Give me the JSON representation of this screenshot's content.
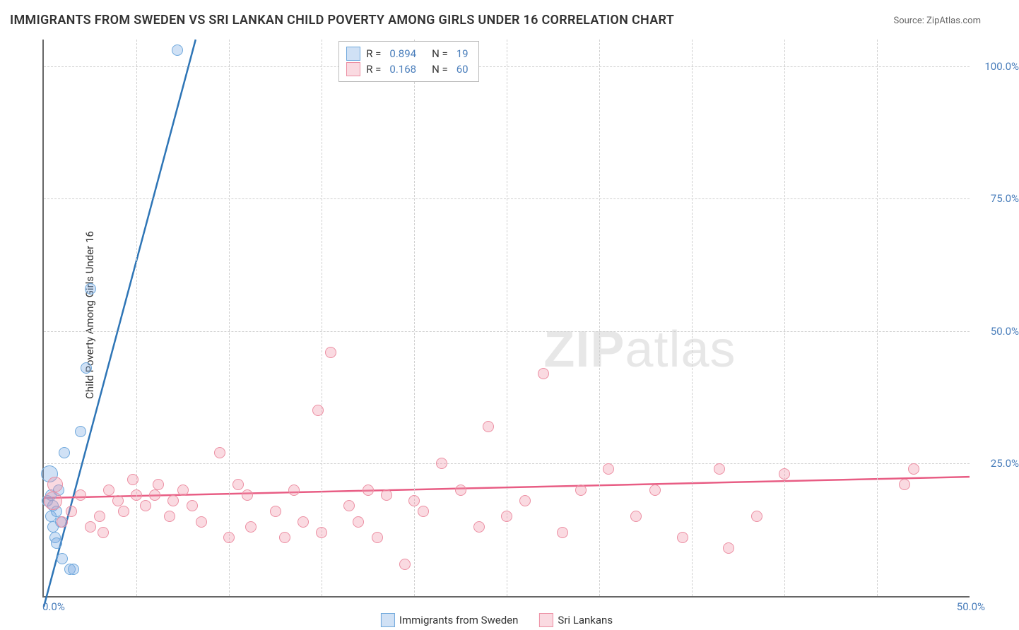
{
  "title": "IMMIGRANTS FROM SWEDEN VS SRI LANKAN CHILD POVERTY AMONG GIRLS UNDER 16 CORRELATION CHART",
  "source_prefix": "Source: ",
  "source": "ZipAtlas.com",
  "ylabel": "Child Poverty Among Girls Under 16",
  "watermark_a": "ZIP",
  "watermark_b": "atlas",
  "chart": {
    "type": "scatter",
    "xlim": [
      0,
      50
    ],
    "ylim": [
      0,
      105
    ],
    "xtick": {
      "pos": 0,
      "label": "0.0%"
    },
    "xtick_right": {
      "pos": 50,
      "label": "50.0%"
    },
    "yticks": [
      {
        "pos": 25,
        "label": "25.0%"
      },
      {
        "pos": 50,
        "label": "50.0%"
      },
      {
        "pos": 75,
        "label": "75.0%"
      },
      {
        "pos": 100,
        "label": "100.0%"
      }
    ],
    "vgrid_step": 5,
    "background_color": "#ffffff",
    "grid_color": "#d0d0d0",
    "axis_color": "#666666",
    "marker_radius": 8,
    "marker_stroke": 1.5,
    "series": [
      {
        "name": "Immigrants from Sweden",
        "fill": "rgba(120,170,225,0.35)",
        "stroke": "#6FA8DC",
        "trend_color": "#2E75B6",
        "trend_width": 2.5,
        "R": "0.894",
        "N": "19",
        "trend": {
          "x1": 0,
          "y1": -2,
          "x2": 8.2,
          "y2": 105
        },
        "points": [
          {
            "x": 0.2,
            "y": 18
          },
          {
            "x": 0.4,
            "y": 15
          },
          {
            "x": 0.4,
            "y": 19
          },
          {
            "x": 0.5,
            "y": 13
          },
          {
            "x": 0.5,
            "y": 17
          },
          {
            "x": 0.6,
            "y": 11
          },
          {
            "x": 0.7,
            "y": 10
          },
          {
            "x": 0.7,
            "y": 16
          },
          {
            "x": 0.8,
            "y": 20
          },
          {
            "x": 0.9,
            "y": 14
          },
          {
            "x": 1.0,
            "y": 7
          },
          {
            "x": 1.1,
            "y": 27
          },
          {
            "x": 1.4,
            "y": 5
          },
          {
            "x": 1.6,
            "y": 5
          },
          {
            "x": 2.0,
            "y": 31
          },
          {
            "x": 2.3,
            "y": 43
          },
          {
            "x": 2.5,
            "y": 58
          },
          {
            "x": 7.2,
            "y": 103
          },
          {
            "x": 0.3,
            "y": 23,
            "r": 12
          }
        ]
      },
      {
        "name": "Sri Lankans",
        "fill": "rgba(240,150,170,0.35)",
        "stroke": "#EC8FA3",
        "trend_color": "#E85D84",
        "trend_width": 2.5,
        "R": "0.168",
        "N": "60",
        "trend": {
          "x1": 0,
          "y1": 18.5,
          "x2": 50,
          "y2": 22.5
        },
        "points": [
          {
            "x": 0.5,
            "y": 18,
            "r": 13
          },
          {
            "x": 0.6,
            "y": 21,
            "r": 11
          },
          {
            "x": 1.0,
            "y": 14
          },
          {
            "x": 1.5,
            "y": 16
          },
          {
            "x": 2.0,
            "y": 19
          },
          {
            "x": 2.5,
            "y": 13
          },
          {
            "x": 3.0,
            "y": 15
          },
          {
            "x": 3.2,
            "y": 12
          },
          {
            "x": 3.5,
            "y": 20
          },
          {
            "x": 4.0,
            "y": 18
          },
          {
            "x": 4.3,
            "y": 16
          },
          {
            "x": 4.8,
            "y": 22
          },
          {
            "x": 5.0,
            "y": 19
          },
          {
            "x": 5.5,
            "y": 17
          },
          {
            "x": 6.0,
            "y": 19
          },
          {
            "x": 6.2,
            "y": 21
          },
          {
            "x": 6.8,
            "y": 15
          },
          {
            "x": 7.0,
            "y": 18
          },
          {
            "x": 7.5,
            "y": 20
          },
          {
            "x": 8.0,
            "y": 17
          },
          {
            "x": 8.5,
            "y": 14
          },
          {
            "x": 9.5,
            "y": 27
          },
          {
            "x": 10.0,
            "y": 11
          },
          {
            "x": 10.5,
            "y": 21
          },
          {
            "x": 11.0,
            "y": 19
          },
          {
            "x": 11.2,
            "y": 13
          },
          {
            "x": 12.5,
            "y": 16
          },
          {
            "x": 13.0,
            "y": 11
          },
          {
            "x": 13.5,
            "y": 20
          },
          {
            "x": 14.0,
            "y": 14
          },
          {
            "x": 14.8,
            "y": 35
          },
          {
            "x": 15.0,
            "y": 12
          },
          {
            "x": 15.5,
            "y": 46
          },
          {
            "x": 16.5,
            "y": 17
          },
          {
            "x": 17.0,
            "y": 14
          },
          {
            "x": 17.5,
            "y": 20
          },
          {
            "x": 18.0,
            "y": 11
          },
          {
            "x": 18.5,
            "y": 19
          },
          {
            "x": 19.5,
            "y": 6
          },
          {
            "x": 20.0,
            "y": 18
          },
          {
            "x": 20.5,
            "y": 16
          },
          {
            "x": 21.5,
            "y": 25
          },
          {
            "x": 22.5,
            "y": 20
          },
          {
            "x": 23.5,
            "y": 13
          },
          {
            "x": 24.0,
            "y": 32
          },
          {
            "x": 25.0,
            "y": 15
          },
          {
            "x": 26.0,
            "y": 18
          },
          {
            "x": 27.0,
            "y": 42
          },
          {
            "x": 28.0,
            "y": 12
          },
          {
            "x": 29.0,
            "y": 20
          },
          {
            "x": 30.5,
            "y": 24
          },
          {
            "x": 32.0,
            "y": 15
          },
          {
            "x": 33.0,
            "y": 20
          },
          {
            "x": 34.5,
            "y": 11
          },
          {
            "x": 36.5,
            "y": 24
          },
          {
            "x": 37.0,
            "y": 9
          },
          {
            "x": 38.5,
            "y": 15
          },
          {
            "x": 40.0,
            "y": 23
          },
          {
            "x": 46.5,
            "y": 21
          },
          {
            "x": 47.0,
            "y": 24
          }
        ]
      }
    ]
  },
  "legend_top": {
    "R_label": "R =",
    "N_label": "N ="
  },
  "legend_bottom": {
    "a": "Immigrants from Sweden",
    "b": "Sri Lankans"
  }
}
